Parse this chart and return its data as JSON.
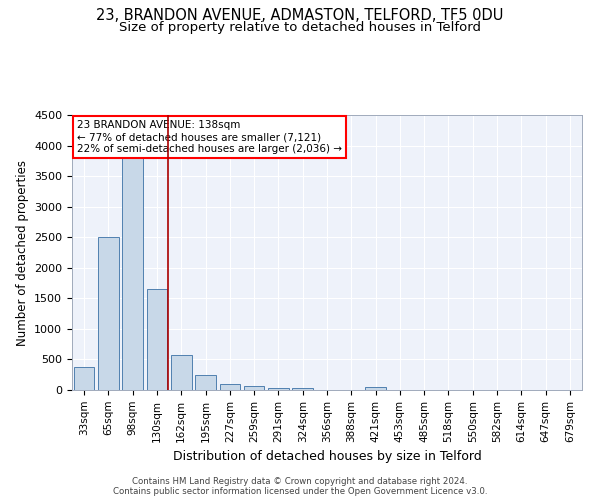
{
  "title1": "23, BRANDON AVENUE, ADMASTON, TELFORD, TF5 0DU",
  "title2": "Size of property relative to detached houses in Telford",
  "xlabel": "Distribution of detached houses by size in Telford",
  "ylabel": "Number of detached properties",
  "categories": [
    "33sqm",
    "65sqm",
    "98sqm",
    "130sqm",
    "162sqm",
    "195sqm",
    "227sqm",
    "259sqm",
    "291sqm",
    "324sqm",
    "356sqm",
    "388sqm",
    "421sqm",
    "453sqm",
    "485sqm",
    "518sqm",
    "550sqm",
    "582sqm",
    "614sqm",
    "647sqm",
    "679sqm"
  ],
  "values": [
    380,
    2500,
    3800,
    1650,
    575,
    240,
    105,
    60,
    40,
    35,
    0,
    0,
    55,
    0,
    0,
    0,
    0,
    0,
    0,
    0,
    0
  ],
  "bar_color": "#c8d8e8",
  "bar_edge_color": "#5080b0",
  "vline_x_index": 3.45,
  "vline_color": "#aa0000",
  "annotation_line1": "23 BRANDON AVENUE: 138sqm",
  "annotation_line2": "← 77% of detached houses are smaller (7,121)",
  "annotation_line3": "22% of semi-detached houses are larger (2,036) →",
  "annotation_box_edge_color": "red",
  "bg_color": "#eef2fa",
  "grid_color": "white",
  "footer": "Contains HM Land Registry data © Crown copyright and database right 2024.\nContains public sector information licensed under the Open Government Licence v3.0.",
  "ylim": [
    0,
    4500
  ],
  "title1_fontsize": 10.5,
  "title2_fontsize": 9.5,
  "xlabel_fontsize": 9,
  "ylabel_fontsize": 8.5,
  "tick_fontsize": 7.5,
  "footer_fontsize": 6.2,
  "annot_fontsize": 7.5
}
